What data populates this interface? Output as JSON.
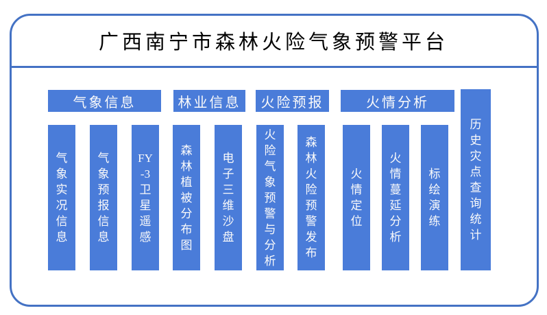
{
  "title": "广西南宁市森林火险气象预警平台",
  "colors": {
    "box_fill": "#4A7CD9",
    "frame_border": "#4472C4",
    "box_text": "#FAFAFA",
    "title_text": "#000000"
  },
  "groups": [
    {
      "label": "气象信息"
    },
    {
      "label": "林业信息"
    },
    {
      "label": "火险预报"
    },
    {
      "label": "火情分析"
    }
  ],
  "columns": [
    {
      "group": "气象信息",
      "label": "气象实况信息",
      "lines": [
        "气",
        "象",
        "实",
        "况",
        "信",
        "息"
      ]
    },
    {
      "group": "气象信息",
      "label": "气象预报信息",
      "lines": [
        "气",
        "象",
        "预",
        "报",
        "信",
        "息"
      ]
    },
    {
      "group": "气象信息",
      "label": "FY-3卫星遥感",
      "lines": [
        "FY",
        "-3",
        "卫",
        "星",
        "遥",
        "感"
      ]
    },
    {
      "group": "林业信息",
      "label": "森林植被分布图",
      "lines": [
        "森",
        "林",
        "植",
        "被",
        "分",
        "布",
        "图"
      ]
    },
    {
      "group": "林业信息",
      "label": "电子三维沙盘",
      "lines": [
        "电",
        "子",
        "三",
        "维",
        "沙",
        "盘"
      ]
    },
    {
      "group": "火险预报",
      "label": "火险气象预警与分析",
      "lines": [
        "火",
        "险",
        "气",
        "象",
        "预",
        "警",
        "与",
        "分",
        "析"
      ]
    },
    {
      "group": "火险预报",
      "label": "森林火险预警发布",
      "lines": [
        "森",
        "林",
        "火",
        "险",
        "预",
        "警",
        "发",
        "布"
      ]
    },
    {
      "group": "火情分析",
      "label": "火情定位",
      "lines": [
        "火",
        "情",
        "定",
        "位"
      ]
    },
    {
      "group": "火情分析",
      "label": "火情蔓延分析",
      "lines": [
        "火",
        "情",
        "蔓",
        "延",
        "分",
        "析"
      ]
    },
    {
      "group": "火情分析",
      "label": "标绘演练",
      "lines": [
        "标",
        "绘",
        "演",
        "练"
      ]
    }
  ],
  "standalone_column": {
    "label": "历史灾点查询统计",
    "lines": [
      "历",
      "史",
      "灾",
      "点",
      "查",
      "询",
      "统",
      "计"
    ]
  }
}
